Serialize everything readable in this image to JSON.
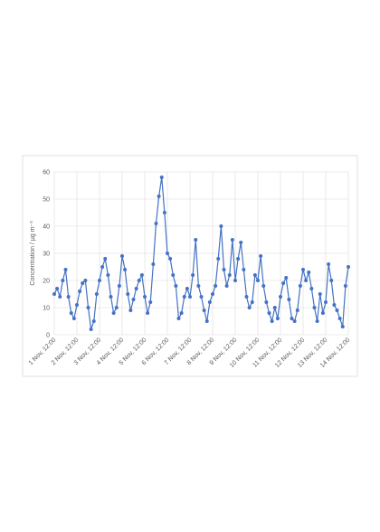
{
  "chart_data": {
    "type": "line",
    "y_label": "Concentration / µg m⁻³",
    "categories": [
      "1 Nov, 12:00",
      null,
      null,
      null,
      null,
      null,
      null,
      null,
      "2 Nov, 12:00",
      null,
      null,
      null,
      null,
      null,
      null,
      null,
      "3 Nov, 12:00",
      null,
      null,
      null,
      null,
      null,
      null,
      null,
      "4 Nov, 12:00",
      null,
      null,
      null,
      null,
      null,
      null,
      null,
      "5 Nov, 12:00",
      null,
      null,
      null,
      null,
      null,
      null,
      null,
      "6 Nov, 12:00",
      null,
      null,
      null,
      null,
      null,
      null,
      null,
      "7 Nov, 12:00",
      null,
      null,
      null,
      null,
      null,
      null,
      null,
      "8 Nov, 12:00",
      null,
      null,
      null,
      null,
      null,
      null,
      null,
      "9 Nov, 12:00",
      null,
      null,
      null,
      null,
      null,
      null,
      null,
      "10 Nov, 12:00",
      null,
      null,
      null,
      null,
      null,
      null,
      null,
      "11 Nov, 12:00",
      null,
      null,
      null,
      null,
      null,
      null,
      null,
      "12 Nov, 12:00",
      null,
      null,
      null,
      null,
      null,
      null,
      null,
      "13 Nov, 12:00",
      null,
      null,
      null,
      null,
      null,
      null,
      null,
      "14 Nov, 12:00"
    ],
    "values": [
      15,
      17,
      14,
      20,
      24,
      14,
      8,
      6,
      11,
      16,
      19,
      20,
      10,
      2,
      5,
      15,
      20,
      25,
      28,
      22,
      14,
      8,
      10,
      18,
      29,
      24,
      15,
      9,
      13,
      17,
      20,
      22,
      14,
      8,
      12,
      26,
      41,
      51,
      58,
      45,
      30,
      28,
      22,
      18,
      6,
      8,
      14,
      17,
      14,
      22,
      35,
      18,
      14,
      9,
      5,
      12,
      15,
      18,
      28,
      40,
      24,
      18,
      22,
      35,
      20,
      28,
      34,
      24,
      14,
      10,
      12,
      22,
      20,
      29,
      18,
      12,
      8,
      5,
      10,
      6,
      14,
      19,
      21,
      13,
      6,
      5,
      9,
      18,
      24,
      20,
      23,
      17,
      10,
      5,
      15,
      8,
      12,
      26,
      20,
      11,
      9,
      6,
      3,
      18,
      25
    ],
    "color": "#4472c4",
    "ylim": [
      0,
      60
    ],
    "yticks": [
      0,
      10,
      20,
      30,
      40,
      50,
      60
    ],
    "grid": true
  }
}
